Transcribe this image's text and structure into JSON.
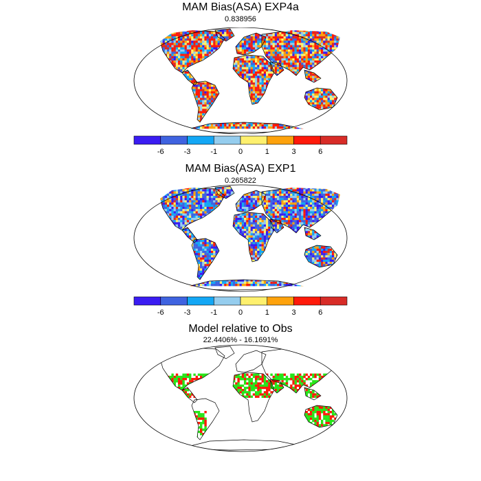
{
  "panels": [
    {
      "title": "MAM Bias(ASA) EXP4a",
      "subtitle": "0.838956",
      "kind": "bias",
      "palette": "warm"
    },
    {
      "title": "MAM Bias(ASA) EXP1",
      "subtitle": "0.265822",
      "kind": "bias",
      "palette": "cool"
    },
    {
      "title": "Model relative to Obs",
      "subtitle": "22.4406% - 16.1691%",
      "kind": "relative"
    }
  ],
  "colorbar": {
    "colors": [
      "#3a1cf2",
      "#3f63e0",
      "#13a7f5",
      "#95cdee",
      "#fef06e",
      "#fea20c",
      "#ff1a0a",
      "#d82c27"
    ],
    "labels": [
      "-6",
      "-3",
      "-1",
      "0",
      "1",
      "3",
      "6"
    ]
  },
  "relative_colors": {
    "model_high": "#ff1a0a",
    "obs_high": "#27e51a"
  }
}
